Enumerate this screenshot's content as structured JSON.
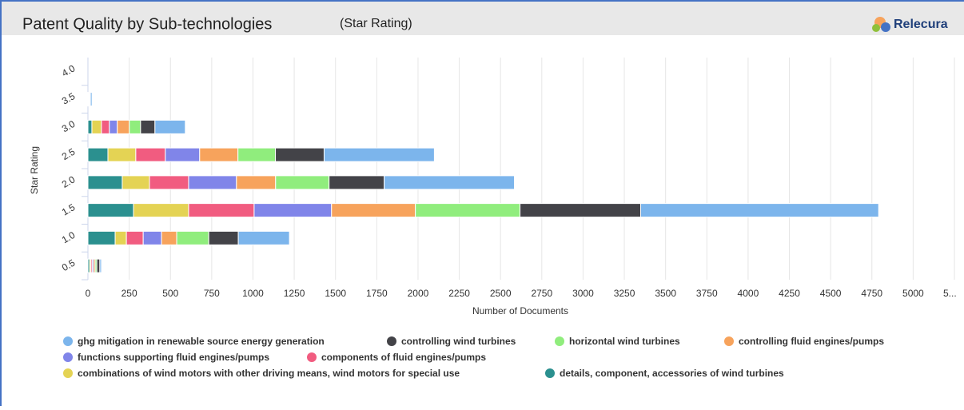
{
  "header": {
    "title": "Patent Quality by Sub-technologies",
    "subtitle": "(Star Rating)",
    "logo": "Relecura"
  },
  "chart_data": {
    "type": "stacked_barh",
    "xlabel": "Number of Documents",
    "ylabel": "Star Rating",
    "categories": [
      "0.5",
      "1.0",
      "1.5",
      "2.0",
      "2.5",
      "3.0",
      "3.5",
      "4.0"
    ],
    "series": [
      {
        "name": "ghg mitigation in renewable source energy generation",
        "color": "#7cb5ec",
        "values": [
          10,
          310,
          1442,
          789,
          668,
          184,
          10,
          0
        ]
      },
      {
        "name": "controlling wind turbines",
        "color": "#434348",
        "values": [
          18,
          179,
          731,
          334,
          295,
          87,
          0,
          0
        ]
      },
      {
        "name": "horizontal wind turbines",
        "color": "#90ed7d",
        "values": [
          10,
          194,
          634,
          324,
          227,
          68,
          0,
          0
        ]
      },
      {
        "name": "controlling fluid engines/pumps",
        "color": "#f7a35c",
        "values": [
          10,
          92,
          508,
          237,
          232,
          73,
          0,
          0
        ]
      },
      {
        "name": "functions supporting fluid engines/pumps",
        "color": "#8085e9",
        "values": [
          8,
          111,
          469,
          290,
          208,
          48,
          5,
          0
        ]
      },
      {
        "name": "components of fluid engines/pumps",
        "color": "#f15c80",
        "values": [
          8,
          102,
          397,
          237,
          179,
          48,
          5,
          0
        ]
      },
      {
        "name": "combinations of wind motors with other driving means, wind motors for special use",
        "color": "#e4d354",
        "values": [
          8,
          68,
          334,
          165,
          169,
          58,
          5,
          0
        ]
      },
      {
        "name": "details, component, accessories of wind turbines",
        "color": "#2b908f",
        "values": [
          10,
          165,
          276,
          208,
          121,
          24,
          0,
          0
        ]
      }
    ],
    "xlim": [
      0,
      5250
    ],
    "xticks": [
      0,
      250,
      500,
      750,
      1000,
      1250,
      1500,
      1750,
      2000,
      2250,
      2500,
      2750,
      3000,
      3250,
      3500,
      3750,
      4000,
      4250,
      4500,
      4750,
      5000,
      {
        "value": 5250,
        "label": "5..."
      }
    ],
    "grid": true
  }
}
